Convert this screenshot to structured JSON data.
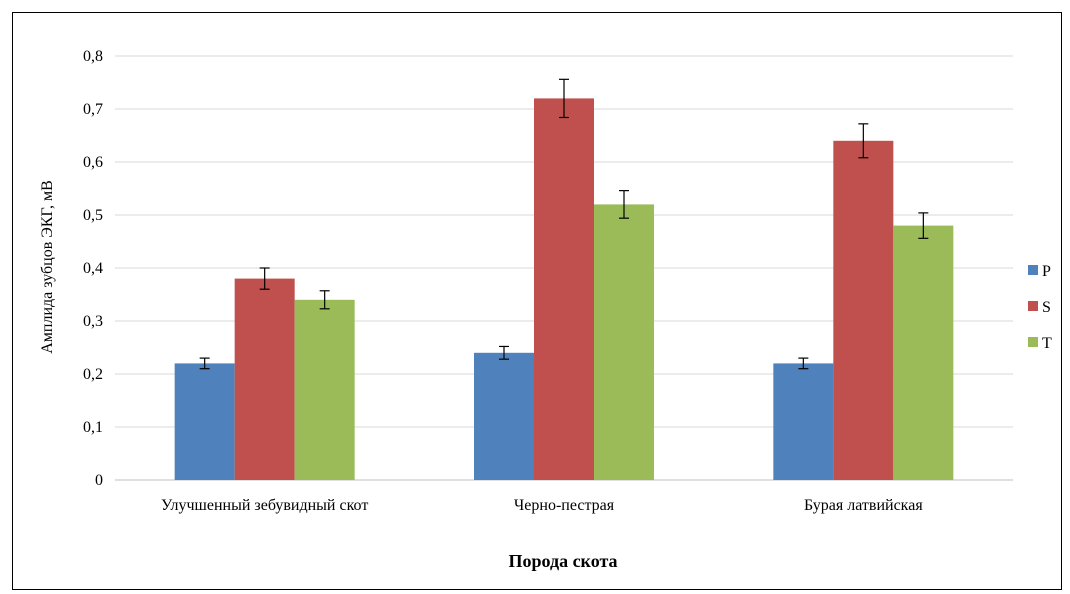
{
  "chart_data": {
    "type": "bar",
    "title": "",
    "xlabel": "Порода скота",
    "ylabel": "Амплида зубцов ЭКГ, мВ",
    "categories": [
      "Улучшенный зебувидный скот",
      "Черно-пестрая",
      "Бурая латвийская"
    ],
    "series": [
      {
        "name": "P",
        "color": "#4F81BD",
        "values": [
          0.22,
          0.24,
          0.22
        ],
        "errors": [
          0.01,
          0.012,
          0.01
        ]
      },
      {
        "name": "S",
        "color": "#C0504D",
        "values": [
          0.38,
          0.72,
          0.64
        ],
        "errors": [
          0.02,
          0.036,
          0.032
        ]
      },
      {
        "name": "T",
        "color": "#9BBB59",
        "values": [
          0.34,
          0.52,
          0.48
        ],
        "errors": [
          0.017,
          0.026,
          0.024
        ]
      }
    ],
    "ylim": [
      0,
      0.8
    ],
    "yticks": [
      0,
      0.1,
      0.2,
      0.3,
      0.4,
      0.5,
      0.6,
      0.7,
      0.8
    ],
    "ytick_labels": [
      "0",
      "0,1",
      "0,2",
      "0,3",
      "0,4",
      "0,5",
      "0,6",
      "0,7",
      "0,8"
    ],
    "grid": true,
    "legend_position": "right"
  }
}
